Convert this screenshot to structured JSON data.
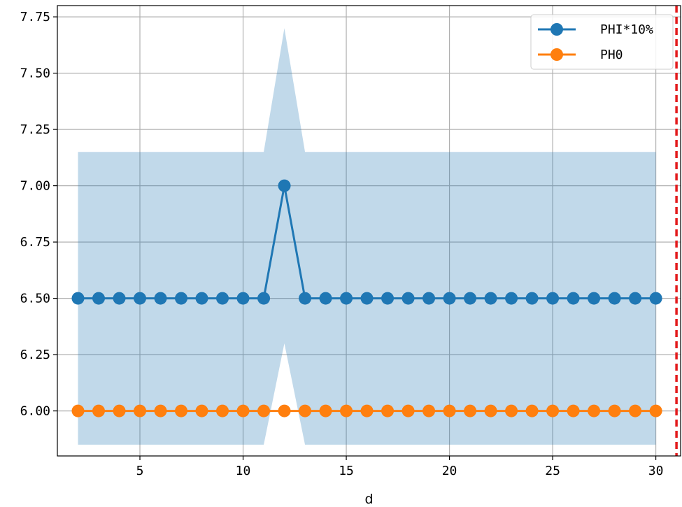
{
  "chart_data": {
    "type": "line",
    "title": "",
    "xlabel": "d",
    "ylabel": "",
    "xlim": [
      1.0,
      31.2
    ],
    "ylim": [
      5.8,
      7.8
    ],
    "x_ticks": [
      5,
      10,
      15,
      20,
      25,
      30
    ],
    "y_ticks": [
      6.0,
      6.25,
      6.5,
      6.75,
      7.0,
      7.25,
      7.5,
      7.75
    ],
    "y_tick_labels": [
      "6.00",
      "6.25",
      "6.50",
      "6.75",
      "7.00",
      "7.25",
      "7.50",
      "7.75"
    ],
    "grid": true,
    "legend_position": "top-right",
    "x": [
      2,
      3,
      4,
      5,
      6,
      7,
      8,
      9,
      10,
      11,
      12,
      13,
      14,
      15,
      16,
      17,
      18,
      19,
      20,
      21,
      22,
      23,
      24,
      25,
      26,
      27,
      28,
      29,
      30
    ],
    "series": [
      {
        "name": "PHI*10%",
        "color": "#1f77b4",
        "marker": "circle",
        "values": [
          6.5,
          6.5,
          6.5,
          6.5,
          6.5,
          6.5,
          6.5,
          6.5,
          6.5,
          6.5,
          7.0,
          6.5,
          6.5,
          6.5,
          6.5,
          6.5,
          6.5,
          6.5,
          6.5,
          6.5,
          6.5,
          6.5,
          6.5,
          6.5,
          6.5,
          6.5,
          6.5,
          6.5,
          6.5
        ]
      },
      {
        "name": "PH0",
        "color": "#ff7f0e",
        "marker": "circle",
        "values": [
          6.0,
          6.0,
          6.0,
          6.0,
          6.0,
          6.0,
          6.0,
          6.0,
          6.0,
          6.0,
          6.0,
          6.0,
          6.0,
          6.0,
          6.0,
          6.0,
          6.0,
          6.0,
          6.0,
          6.0,
          6.0,
          6.0,
          6.0,
          6.0,
          6.0,
          6.0,
          6.0,
          6.0,
          6.0
        ]
      }
    ],
    "band": {
      "color": "#1f77b4",
      "opacity": 0.28,
      "lower": [
        5.85,
        5.85,
        5.85,
        5.85,
        5.85,
        5.85,
        5.85,
        5.85,
        5.85,
        5.85,
        6.3,
        5.85,
        5.85,
        5.85,
        5.85,
        5.85,
        5.85,
        5.85,
        5.85,
        5.85,
        5.85,
        5.85,
        5.85,
        5.85,
        5.85,
        5.85,
        5.85,
        5.85,
        5.85
      ],
      "upper": [
        7.15,
        7.15,
        7.15,
        7.15,
        7.15,
        7.15,
        7.15,
        7.15,
        7.15,
        7.15,
        7.7,
        7.15,
        7.15,
        7.15,
        7.15,
        7.15,
        7.15,
        7.15,
        7.15,
        7.15,
        7.15,
        7.15,
        7.15,
        7.15,
        7.15,
        7.15,
        7.15,
        7.15,
        7.15
      ]
    },
    "vertical_line": {
      "x": 31,
      "color": "#e31a1c",
      "style": "dashed"
    }
  }
}
